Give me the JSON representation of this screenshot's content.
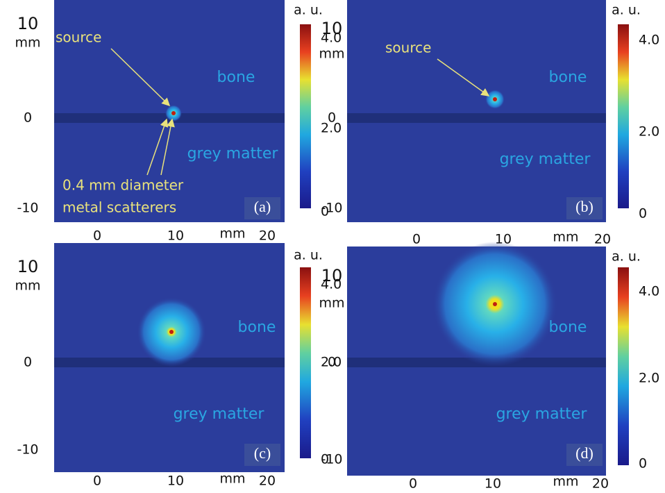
{
  "panels": [
    {
      "label": "(a)",
      "colorbar_unit": "a. u.",
      "colorbar_ticks": [
        "4.0",
        "2.0",
        "0"
      ],
      "y_unit": "mm",
      "x_unit": "mm",
      "yticks": [
        "10",
        "0",
        "-10"
      ],
      "xticks": [
        "0",
        "10",
        "20"
      ],
      "regions": [
        "bone",
        "grey matter"
      ],
      "annotations": [
        "source",
        "0.4 mm diameter",
        "metal scatterers"
      ]
    },
    {
      "label": "(b)",
      "colorbar_unit": "a. u.",
      "colorbar_ticks": [
        "4.0",
        "2.0",
        "0"
      ],
      "y_unit": "mm",
      "x_unit": "mm",
      "yticks": [
        "10",
        "0",
        "-10"
      ],
      "xticks": [
        "0",
        "10",
        "20"
      ],
      "regions": [
        "bone",
        "grey matter"
      ],
      "annotations": [
        "source"
      ]
    },
    {
      "label": "(c)",
      "colorbar_unit": "a. u.",
      "colorbar_ticks": [
        "4.0",
        "2.0",
        "0"
      ],
      "y_unit": "mm",
      "x_unit": "mm",
      "yticks": [
        "10",
        "0",
        "-10"
      ],
      "xticks": [
        "0",
        "10",
        "20"
      ],
      "regions": [
        "bone",
        "grey matter"
      ],
      "annotations": []
    },
    {
      "label": "(d)",
      "colorbar_unit": "a. u.",
      "colorbar_ticks": [
        "4.0",
        "2.0",
        "0"
      ],
      "y_unit": "mm",
      "x_unit": "mm",
      "yticks": [
        "10",
        "0",
        "-10"
      ],
      "xticks": [
        "0",
        "10",
        "20"
      ],
      "regions": [
        "bone",
        "grey matter"
      ],
      "annotations": []
    }
  ]
}
